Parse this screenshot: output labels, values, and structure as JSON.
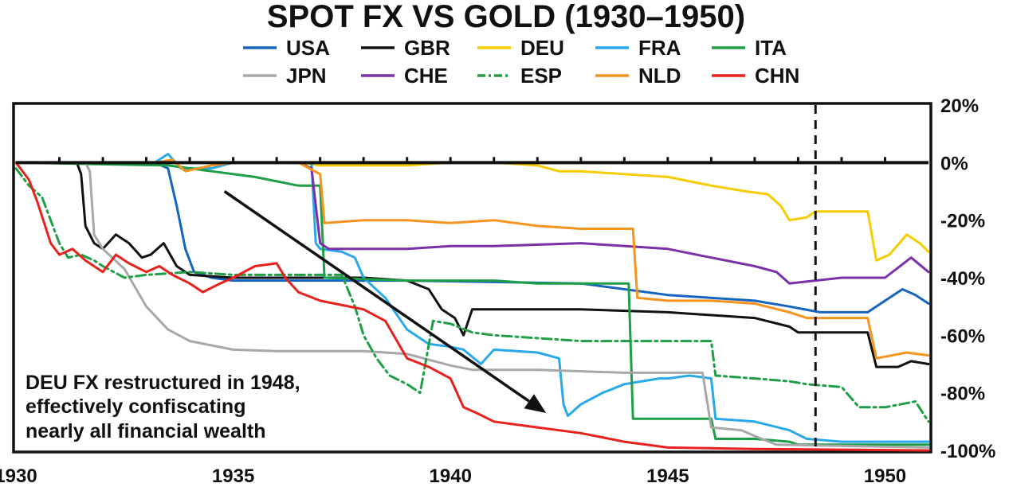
{
  "chart_data": {
    "type": "line",
    "title": "SPOT FX VS GOLD (1930–1950)",
    "xlabel": "",
    "ylabel": "",
    "xlim": [
      1930,
      1951
    ],
    "ylim": [
      -100,
      20
    ],
    "x_ticks": [
      1930,
      1935,
      1940,
      1945,
      1950
    ],
    "x_tick_labels": [
      "1930",
      "1935",
      "1940",
      "1945",
      "1950"
    ],
    "y_ticks": [
      20,
      0,
      -20,
      -40,
      -60,
      -80,
      -100
    ],
    "y_tick_labels": [
      "20%",
      "0%",
      "-20%",
      "-40%",
      "-60%",
      "-80%",
      "-100%"
    ],
    "legend_position": "top-center",
    "vertical_line": {
      "x": 1948.4,
      "style": "dashed"
    },
    "annotation": {
      "lines": [
        "DEU FX restructured in 1948,",
        "effectively confiscating",
        "nearly all financial wealth"
      ],
      "arrow_from": [
        1934.8,
        -10
      ],
      "arrow_to": [
        1942.2,
        -87
      ]
    },
    "series": [
      {
        "name": "USA",
        "color": "#1565c0",
        "dash": "solid",
        "points": [
          [
            1930,
            0
          ],
          [
            1933.2,
            0
          ],
          [
            1933.5,
            -2
          ],
          [
            1933.7,
            -15
          ],
          [
            1933.9,
            -30
          ],
          [
            1934.1,
            -38
          ],
          [
            1934.5,
            -40
          ],
          [
            1935,
            -41
          ],
          [
            1937,
            -41
          ],
          [
            1939,
            -41
          ],
          [
            1941,
            -41.5
          ],
          [
            1943,
            -42
          ],
          [
            1945,
            -46
          ],
          [
            1947,
            -48
          ],
          [
            1947.8,
            -50
          ],
          [
            1948.5,
            -52
          ],
          [
            1949.6,
            -52
          ],
          [
            1950,
            -48
          ],
          [
            1950.4,
            -44
          ],
          [
            1950.7,
            -46
          ],
          [
            1951,
            -49
          ]
        ]
      },
      {
        "name": "GBR",
        "color": "#111111",
        "dash": "solid",
        "points": [
          [
            1930,
            0
          ],
          [
            1931.4,
            0
          ],
          [
            1931.5,
            -4
          ],
          [
            1931.6,
            -22
          ],
          [
            1931.8,
            -28
          ],
          [
            1932,
            -30
          ],
          [
            1932.3,
            -25
          ],
          [
            1932.6,
            -28
          ],
          [
            1932.9,
            -33
          ],
          [
            1933.1,
            -32
          ],
          [
            1933.4,
            -28
          ],
          [
            1933.7,
            -36
          ],
          [
            1934,
            -39
          ],
          [
            1935,
            -40
          ],
          [
            1936,
            -40
          ],
          [
            1937,
            -40
          ],
          [
            1938,
            -40
          ],
          [
            1939,
            -41
          ],
          [
            1939.5,
            -44
          ],
          [
            1939.8,
            -51
          ],
          [
            1940.1,
            -54
          ],
          [
            1940.3,
            -60
          ],
          [
            1940.5,
            -51
          ],
          [
            1941,
            -51
          ],
          [
            1943,
            -51
          ],
          [
            1945,
            -52
          ],
          [
            1947,
            -54
          ],
          [
            1947.8,
            -57
          ],
          [
            1948,
            -59
          ],
          [
            1949,
            -59
          ],
          [
            1949.6,
            -59
          ],
          [
            1949.8,
            -71
          ],
          [
            1950.3,
            -71
          ],
          [
            1950.6,
            -69
          ],
          [
            1951,
            -70
          ]
        ]
      },
      {
        "name": "DEU",
        "color": "#f5cc00",
        "dash": "solid",
        "points": [
          [
            1930,
            0
          ],
          [
            1936.5,
            0
          ],
          [
            1937,
            -1
          ],
          [
            1939,
            -1
          ],
          [
            1940,
            0
          ],
          [
            1941,
            0
          ],
          [
            1942,
            -1
          ],
          [
            1942.5,
            -3
          ],
          [
            1943,
            -3
          ],
          [
            1945,
            -5
          ],
          [
            1946,
            -8
          ],
          [
            1946.8,
            -10
          ],
          [
            1947.3,
            -11
          ],
          [
            1947.6,
            -15
          ],
          [
            1947.8,
            -20
          ],
          [
            1948.2,
            -19
          ],
          [
            1948.4,
            -17
          ],
          [
            1949,
            -17
          ],
          [
            1949.6,
            -17
          ],
          [
            1949.8,
            -34
          ],
          [
            1950.1,
            -32
          ],
          [
            1950.5,
            -25
          ],
          [
            1950.8,
            -28
          ],
          [
            1951,
            -31
          ]
        ]
      },
      {
        "name": "FRA",
        "color": "#29a8ea",
        "dash": "solid",
        "points": [
          [
            1930,
            0
          ],
          [
            1933.2,
            0
          ],
          [
            1933.5,
            3
          ],
          [
            1933.8,
            -2
          ],
          [
            1934.5,
            -2
          ],
          [
            1935,
            0
          ],
          [
            1936,
            0
          ],
          [
            1936.8,
            0
          ],
          [
            1936.9,
            -28
          ],
          [
            1937,
            -30
          ],
          [
            1937.5,
            -31
          ],
          [
            1937.8,
            -33
          ],
          [
            1938,
            -40
          ],
          [
            1938.5,
            -47
          ],
          [
            1939,
            -58
          ],
          [
            1939.5,
            -63
          ],
          [
            1940,
            -64
          ],
          [
            1940.3,
            -65
          ],
          [
            1940.7,
            -70
          ],
          [
            1941,
            -65
          ],
          [
            1942,
            -66
          ],
          [
            1942.5,
            -68
          ],
          [
            1942.6,
            -84
          ],
          [
            1942.7,
            -88
          ],
          [
            1943,
            -84
          ],
          [
            1943.5,
            -80
          ],
          [
            1944,
            -77
          ],
          [
            1944.8,
            -75
          ],
          [
            1945,
            -75
          ],
          [
            1945.5,
            -74
          ],
          [
            1946,
            -75
          ],
          [
            1946.1,
            -89
          ],
          [
            1947,
            -90
          ],
          [
            1947.8,
            -93
          ],
          [
            1948.2,
            -96
          ],
          [
            1949,
            -97
          ],
          [
            1951,
            -97
          ]
        ]
      },
      {
        "name": "ITA",
        "color": "#1e9e45",
        "dash": "solid",
        "points": [
          [
            1930,
            0
          ],
          [
            1933.5,
            -1
          ],
          [
            1934.5,
            -3
          ],
          [
            1935.5,
            -5
          ],
          [
            1936.5,
            -8
          ],
          [
            1937,
            -8
          ],
          [
            1937.1,
            -40
          ],
          [
            1939,
            -41
          ],
          [
            1940,
            -41
          ],
          [
            1941,
            -41
          ],
          [
            1942,
            -42
          ],
          [
            1943,
            -42
          ],
          [
            1944.1,
            -42
          ],
          [
            1944.2,
            -89
          ],
          [
            1945,
            -89
          ],
          [
            1946,
            -89
          ],
          [
            1946.1,
            -96
          ],
          [
            1947,
            -96
          ],
          [
            1947.8,
            -97
          ],
          [
            1948,
            -98
          ],
          [
            1951,
            -98
          ]
        ]
      },
      {
        "name": "JPN",
        "color": "#a8a8a8",
        "dash": "solid",
        "points": [
          [
            1930,
            0
          ],
          [
            1931.6,
            0
          ],
          [
            1931.7,
            -3
          ],
          [
            1931.8,
            -25
          ],
          [
            1932,
            -30
          ],
          [
            1932.5,
            -37
          ],
          [
            1933,
            -50
          ],
          [
            1933.5,
            -58
          ],
          [
            1934,
            -62
          ],
          [
            1935,
            -65
          ],
          [
            1936,
            -65.5
          ],
          [
            1938,
            -65.5
          ],
          [
            1939,
            -66.5
          ],
          [
            1940,
            -70.5
          ],
          [
            1940.5,
            -72
          ],
          [
            1942,
            -72
          ],
          [
            1944,
            -73
          ],
          [
            1945.8,
            -73
          ],
          [
            1946,
            -92
          ],
          [
            1946.7,
            -93
          ],
          [
            1947,
            -95
          ],
          [
            1947.5,
            -98
          ],
          [
            1951,
            -99
          ]
        ]
      },
      {
        "name": "CHE",
        "color": "#7b2fa8",
        "dash": "solid",
        "points": [
          [
            1930,
            0
          ],
          [
            1936.5,
            0
          ],
          [
            1936.8,
            -2
          ],
          [
            1937,
            -28
          ],
          [
            1937.2,
            -30
          ],
          [
            1938,
            -30
          ],
          [
            1939,
            -30
          ],
          [
            1940,
            -29
          ],
          [
            1941,
            -29
          ],
          [
            1943,
            -28
          ],
          [
            1945,
            -30
          ],
          [
            1946,
            -33
          ],
          [
            1947,
            -36
          ],
          [
            1947.5,
            -38
          ],
          [
            1947.8,
            -42
          ],
          [
            1948.4,
            -41
          ],
          [
            1949,
            -40
          ],
          [
            1950,
            -40
          ],
          [
            1950.6,
            -33
          ],
          [
            1951,
            -38
          ]
        ]
      },
      {
        "name": "ESP",
        "color": "#1e9e45",
        "dash": "dashdot",
        "points": [
          [
            1930,
            -2
          ],
          [
            1930.3,
            -8
          ],
          [
            1930.6,
            -12
          ],
          [
            1930.8,
            -20
          ],
          [
            1931,
            -28
          ],
          [
            1931.2,
            -33
          ],
          [
            1931.5,
            -32
          ],
          [
            1931.8,
            -34
          ],
          [
            1932,
            -36
          ],
          [
            1932.5,
            -40
          ],
          [
            1933,
            -39
          ],
          [
            1934,
            -38
          ],
          [
            1935,
            -39
          ],
          [
            1936,
            -39
          ],
          [
            1937.5,
            -39
          ],
          [
            1937.8,
            -50
          ],
          [
            1938,
            -60
          ],
          [
            1938.3,
            -68
          ],
          [
            1938.6,
            -74
          ],
          [
            1939,
            -77
          ],
          [
            1939.3,
            -80
          ],
          [
            1939.6,
            -55
          ],
          [
            1940,
            -56
          ],
          [
            1940.5,
            -59
          ],
          [
            1941,
            -60
          ],
          [
            1943,
            -62
          ],
          [
            1944,
            -62
          ],
          [
            1945,
            -62
          ],
          [
            1946,
            -62
          ],
          [
            1946.1,
            -74
          ],
          [
            1947,
            -75
          ],
          [
            1947.8,
            -76
          ],
          [
            1948.2,
            -77
          ],
          [
            1949,
            -78
          ],
          [
            1949.4,
            -85
          ],
          [
            1950,
            -85
          ],
          [
            1950.7,
            -83
          ],
          [
            1951,
            -90
          ]
        ]
      },
      {
        "name": "NLD",
        "color": "#f7941d",
        "dash": "solid",
        "points": [
          [
            1930,
            0
          ],
          [
            1933.2,
            0
          ],
          [
            1933.6,
            1
          ],
          [
            1933.9,
            -3
          ],
          [
            1934.5,
            -1
          ],
          [
            1935,
            0
          ],
          [
            1936.5,
            0
          ],
          [
            1937,
            -4
          ],
          [
            1937.1,
            -21
          ],
          [
            1938,
            -20
          ],
          [
            1939,
            -20
          ],
          [
            1940,
            -21
          ],
          [
            1941,
            -20
          ],
          [
            1942,
            -22
          ],
          [
            1943,
            -23
          ],
          [
            1944.2,
            -23
          ],
          [
            1944.3,
            -47
          ],
          [
            1945,
            -48
          ],
          [
            1946,
            -48
          ],
          [
            1947,
            -49
          ],
          [
            1947.8,
            -52
          ],
          [
            1948.2,
            -54
          ],
          [
            1949,
            -54
          ],
          [
            1949.6,
            -54
          ],
          [
            1949.8,
            -68
          ],
          [
            1950.5,
            -66
          ],
          [
            1951,
            -67
          ]
        ]
      },
      {
        "name": "CHN",
        "color": "#e8211c",
        "dash": "solid",
        "points": [
          [
            1930,
            0
          ],
          [
            1930.3,
            -6
          ],
          [
            1930.5,
            -14
          ],
          [
            1930.8,
            -28
          ],
          [
            1931,
            -32
          ],
          [
            1931.3,
            -30
          ],
          [
            1931.6,
            -34
          ],
          [
            1932,
            -38
          ],
          [
            1932.3,
            -32
          ],
          [
            1932.6,
            -35
          ],
          [
            1933,
            -38
          ],
          [
            1933.3,
            -36
          ],
          [
            1933.6,
            -39
          ],
          [
            1934,
            -42
          ],
          [
            1934.3,
            -45
          ],
          [
            1934.7,
            -42
          ],
          [
            1935,
            -40
          ],
          [
            1935.5,
            -36
          ],
          [
            1936,
            -35
          ],
          [
            1936.2,
            -40
          ],
          [
            1936.5,
            -45
          ],
          [
            1937,
            -48
          ],
          [
            1938,
            -51
          ],
          [
            1938.5,
            -55
          ],
          [
            1939,
            -68
          ],
          [
            1939.5,
            -71
          ],
          [
            1940,
            -75
          ],
          [
            1940.3,
            -85
          ],
          [
            1940.6,
            -87
          ],
          [
            1941,
            -90
          ],
          [
            1942,
            -92
          ],
          [
            1943,
            -94
          ],
          [
            1944,
            -97
          ],
          [
            1945,
            -99
          ],
          [
            1947,
            -99.5
          ],
          [
            1951,
            -100
          ]
        ]
      }
    ]
  }
}
